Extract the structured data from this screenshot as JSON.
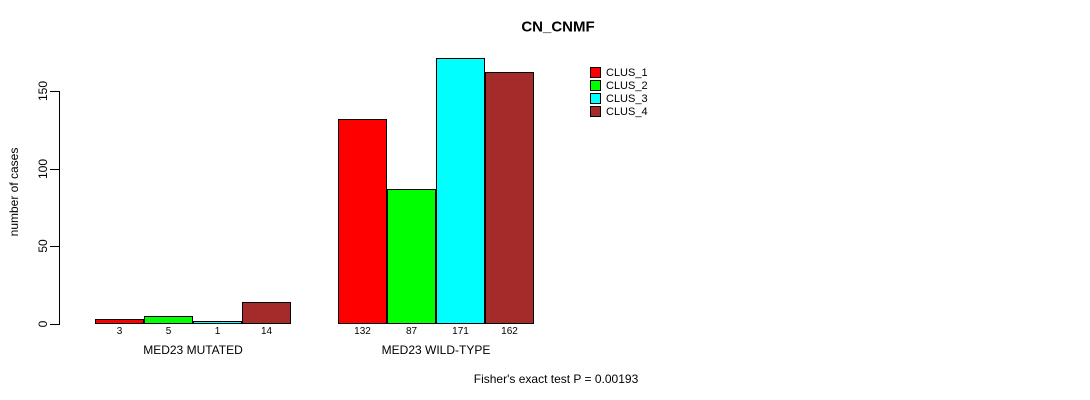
{
  "chart_data": {
    "type": "bar",
    "title": "CN_CNMF",
    "ylabel": "number of cases",
    "xlabel": "",
    "categories": [
      "MED23 MUTATED",
      "MED23 WILD-TYPE"
    ],
    "series": [
      {
        "name": "CLUS_1",
        "color": "#ff0000",
        "values": [
          3,
          132
        ]
      },
      {
        "name": "CLUS_2",
        "color": "#00ff00",
        "values": [
          5,
          87
        ]
      },
      {
        "name": "CLUS_3",
        "color": "#00ffff",
        "values": [
          1,
          171
        ]
      },
      {
        "name": "CLUS_4",
        "color": "#a52a2a",
        "values": [
          14,
          162
        ]
      }
    ],
    "yticks": [
      0,
      50,
      100,
      150
    ],
    "ylim": [
      0,
      171
    ],
    "grid": false,
    "legend_position": "top-right",
    "bar_value_labels_shown": true,
    "annotation": "Fisher's exact test P = 0.00193"
  }
}
